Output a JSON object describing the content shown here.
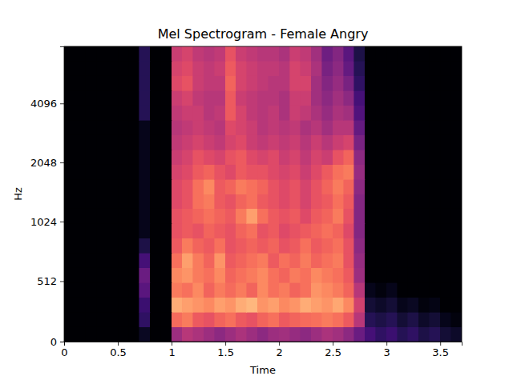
{
  "chart_data": {
    "type": "heatmap",
    "title": "Mel Spectrogram - Female Angry",
    "x_label": "Time",
    "y_label": "Hz",
    "xlim": [
      0,
      3.7
    ],
    "xticks": [
      0,
      0.5,
      1,
      1.5,
      2,
      2.5,
      3,
      3.5
    ],
    "ylim": [
      0,
      8000
    ],
    "yticks": [
      0,
      512,
      1024,
      2048,
      4096
    ],
    "color_range": [
      -80,
      0
    ],
    "x_edges": [
      0,
      0.1,
      0.2,
      0.3,
      0.4,
      0.5,
      0.6,
      0.7,
      0.8,
      0.9,
      1,
      1.1,
      1.2,
      1.3,
      1.4,
      1.5,
      1.6,
      1.7,
      1.8,
      1.9,
      2,
      2.1,
      2.2,
      2.3,
      2.4,
      2.5,
      2.6,
      2.7,
      2.8,
      2.9,
      3,
      3.1,
      3.2,
      3.3,
      3.4,
      3.5,
      3.6,
      3.7
    ],
    "y_edges": [
      0,
      125,
      250,
      375,
      500,
      625,
      750,
      875,
      1000,
      1189,
      1414,
      1682,
      2000,
      2378,
      2828,
      3364,
      4000,
      4757,
      5657,
      6727,
      8000
    ],
    "cells": [
      [
        -80,
        -80,
        -80,
        -80,
        -80,
        -80,
        -80,
        -75,
        -80,
        -80,
        -45,
        -40,
        -42,
        -45,
        -48,
        -45,
        -42,
        -45,
        -48,
        -45,
        -44,
        -46,
        -48,
        -45,
        -42,
        -44,
        -48,
        -55,
        -62,
        -66,
        -64,
        -68,
        -66,
        -70,
        -68,
        -72,
        -74
      ],
      [
        -80,
        -80,
        -80,
        -80,
        -80,
        -80,
        -80,
        -66,
        -80,
        -80,
        -25,
        -22,
        -28,
        -30,
        -26,
        -24,
        -28,
        -30,
        -26,
        -24,
        -28,
        -26,
        -25,
        -24,
        -22,
        -24,
        -28,
        -40,
        -68,
        -70,
        -68,
        -72,
        -70,
        -74,
        -72,
        -76,
        -78
      ],
      [
        -80,
        -80,
        -80,
        -80,
        -80,
        -80,
        -80,
        -64,
        -80,
        -80,
        -14,
        -16,
        -18,
        -20,
        -16,
        -18,
        -14,
        -12,
        -18,
        -16,
        -20,
        -18,
        -14,
        -16,
        -18,
        -15,
        -20,
        -35,
        -72,
        -74,
        -72,
        -76,
        -75,
        -78,
        -77,
        -80,
        -80
      ],
      [
        -80,
        -80,
        -80,
        -80,
        -80,
        -80,
        -80,
        -58,
        -80,
        -80,
        -22,
        -24,
        -20,
        -26,
        -22,
        -25,
        -22,
        -26,
        -20,
        -24,
        -22,
        -26,
        -24,
        -18,
        -20,
        -22,
        -26,
        -40,
        -76,
        -78,
        -76,
        -80,
        -80,
        -80,
        -80,
        -80,
        -80
      ],
      [
        -80,
        -80,
        -80,
        -80,
        -80,
        -80,
        -80,
        -55,
        -80,
        -80,
        -20,
        -18,
        -22,
        -24,
        -20,
        -26,
        -24,
        -22,
        -20,
        -24,
        -26,
        -22,
        -24,
        -20,
        -22,
        -24,
        -28,
        -45,
        -80,
        -80,
        -80,
        -80,
        -80,
        -80,
        -80,
        -80,
        -80
      ],
      [
        -80,
        -80,
        -80,
        -80,
        -80,
        -80,
        -80,
        -62,
        -80,
        -80,
        -24,
        -16,
        -22,
        -26,
        -18,
        -28,
        -26,
        -24,
        -22,
        -28,
        -24,
        -26,
        -22,
        -26,
        -24,
        -22,
        -30,
        -46,
        -80,
        -80,
        -80,
        -80,
        -80,
        -80,
        -80,
        -80,
        -80
      ],
      [
        -80,
        -80,
        -80,
        -80,
        -80,
        -80,
        -80,
        -70,
        -80,
        -80,
        -28,
        -22,
        -26,
        -28,
        -24,
        -30,
        -28,
        -26,
        -28,
        -26,
        -30,
        -28,
        -24,
        -28,
        -26,
        -24,
        -30,
        -48,
        -80,
        -80,
        -80,
        -80,
        -80,
        -80,
        -80,
        -80,
        -80
      ],
      [
        -80,
        -80,
        -80,
        -80,
        -80,
        -80,
        -80,
        -76,
        -80,
        -80,
        -30,
        -28,
        -30,
        -26,
        -28,
        -30,
        -26,
        -24,
        -30,
        -28,
        -32,
        -30,
        -28,
        -26,
        -24,
        -26,
        -32,
        -50,
        -80,
        -80,
        -80,
        -80,
        -80,
        -80,
        -80,
        -80,
        -80
      ],
      [
        -80,
        -80,
        -80,
        -80,
        -80,
        -80,
        -80,
        -76,
        -80,
        -80,
        -30,
        -28,
        -26,
        -24,
        -26,
        -28,
        -22,
        -16,
        -24,
        -28,
        -30,
        -28,
        -32,
        -28,
        -26,
        -22,
        -30,
        -50,
        -80,
        -80,
        -80,
        -80,
        -80,
        -80,
        -80,
        -80,
        -80
      ],
      [
        -80,
        -80,
        -80,
        -80,
        -80,
        -80,
        -80,
        -76,
        -80,
        -80,
        -32,
        -30,
        -24,
        -22,
        -28,
        -30,
        -26,
        -24,
        -28,
        -30,
        -32,
        -30,
        -34,
        -30,
        -28,
        -24,
        -28,
        -50,
        -80,
        -80,
        -80,
        -80,
        -80,
        -80,
        -80,
        -80,
        -80
      ],
      [
        -80,
        -80,
        -80,
        -80,
        -80,
        -80,
        -80,
        -76,
        -80,
        -80,
        -32,
        -30,
        -24,
        -20,
        -28,
        -26,
        -22,
        -24,
        -26,
        -30,
        -32,
        -30,
        -34,
        -30,
        -26,
        -22,
        -26,
        -48,
        -80,
        -80,
        -80,
        -80,
        -80,
        -80,
        -80,
        -80,
        -80
      ],
      [
        -80,
        -80,
        -80,
        -80,
        -80,
        -80,
        -80,
        -76,
        -80,
        -80,
        -34,
        -32,
        -28,
        -26,
        -30,
        -32,
        -28,
        -30,
        -30,
        -32,
        -34,
        -32,
        -36,
        -32,
        -28,
        -24,
        -22,
        -46,
        -80,
        -80,
        -80,
        -80,
        -80,
        -80,
        -80,
        -80,
        -80
      ],
      [
        -80,
        -80,
        -80,
        -80,
        -80,
        -80,
        -80,
        -76,
        -80,
        -80,
        -36,
        -34,
        -30,
        -32,
        -34,
        -30,
        -28,
        -32,
        -34,
        -32,
        -36,
        -34,
        -38,
        -34,
        -36,
        -30,
        -26,
        -48,
        -80,
        -80,
        -80,
        -80,
        -80,
        -80,
        -80,
        -80,
        -80
      ],
      [
        -80,
        -80,
        -80,
        -80,
        -80,
        -80,
        -80,
        -76,
        -80,
        -80,
        -38,
        -36,
        -34,
        -36,
        -38,
        -34,
        -32,
        -36,
        -38,
        -36,
        -38,
        -36,
        -40,
        -36,
        -40,
        -36,
        -34,
        -52,
        -80,
        -80,
        -80,
        -80,
        -80,
        -80,
        -80,
        -80,
        -80
      ],
      [
        -80,
        -80,
        -80,
        -80,
        -80,
        -80,
        -80,
        -76,
        -80,
        -80,
        -40,
        -38,
        -36,
        -38,
        -40,
        -32,
        -34,
        -36,
        -40,
        -38,
        -40,
        -38,
        -42,
        -40,
        -44,
        -40,
        -40,
        -56,
        -80,
        -80,
        -80,
        -80,
        -80,
        -80,
        -80,
        -80,
        -80
      ],
      [
        -80,
        -80,
        -80,
        -80,
        -80,
        -80,
        -80,
        -68,
        -80,
        -80,
        -38,
        -36,
        -36,
        -40,
        -38,
        -28,
        -34,
        -38,
        -40,
        -38,
        -42,
        -36,
        -38,
        -42,
        -46,
        -42,
        -44,
        -60,
        -80,
        -80,
        -80,
        -80,
        -80,
        -80,
        -80,
        -80,
        -80
      ],
      [
        -80,
        -80,
        -80,
        -80,
        -80,
        -80,
        -80,
        -68,
        -80,
        -80,
        -36,
        -34,
        -38,
        -40,
        -40,
        -28,
        -36,
        -38,
        -40,
        -40,
        -42,
        -36,
        -36,
        -44,
        -48,
        -44,
        -48,
        -62,
        -80,
        -80,
        -80,
        -80,
        -80,
        -80,
        -80,
        -80,
        -80
      ],
      [
        -80,
        -80,
        -80,
        -80,
        -80,
        -80,
        -80,
        -68,
        -80,
        -80,
        -32,
        -30,
        -36,
        -38,
        -38,
        -26,
        -34,
        -36,
        -38,
        -40,
        -40,
        -34,
        -34,
        -44,
        -50,
        -46,
        -52,
        -66,
        -80,
        -80,
        -80,
        -80,
        -80,
        -80,
        -80,
        -80,
        -80
      ],
      [
        -80,
        -80,
        -80,
        -80,
        -80,
        -80,
        -80,
        -68,
        -80,
        -80,
        -34,
        -32,
        -36,
        -38,
        -36,
        -28,
        -34,
        -36,
        -38,
        -38,
        -40,
        -34,
        -36,
        -42,
        -52,
        -48,
        -56,
        -68,
        -80,
        -80,
        -80,
        -80,
        -80,
        -80,
        -80,
        -80,
        -80
      ],
      [
        -80,
        -80,
        -80,
        -80,
        -80,
        -80,
        -80,
        -68,
        -80,
        -80,
        -36,
        -34,
        -38,
        -40,
        -38,
        -30,
        -36,
        -38,
        -40,
        -40,
        -42,
        -36,
        -38,
        -44,
        -54,
        -50,
        -58,
        -70,
        -80,
        -80,
        -80,
        -80,
        -80,
        -80,
        -80,
        -80,
        -80
      ]
    ]
  }
}
